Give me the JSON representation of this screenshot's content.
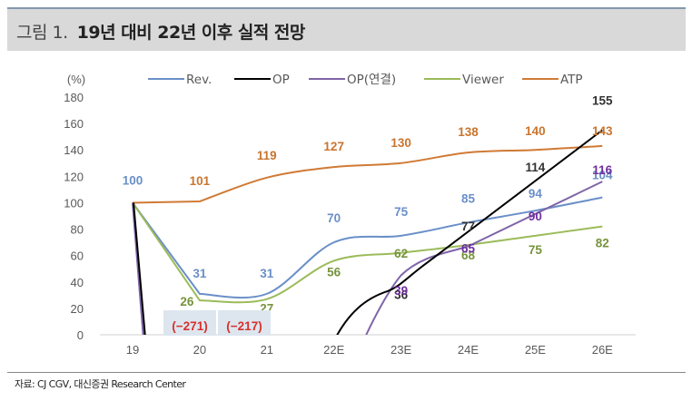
{
  "header": {
    "prefix": "그림 1.",
    "title": "19년 대비 22년 이후 실적 전망"
  },
  "footer": {
    "source": "자료: CJ CGV, 대신증권 Research Center"
  },
  "chart_data": {
    "type": "line",
    "title": "19년 대비 22년 이후 실적 전망",
    "ylabel": "(%)",
    "xlabel": "",
    "ylim": [
      0,
      180
    ],
    "yticks": [
      0,
      20,
      40,
      60,
      80,
      100,
      120,
      140,
      160,
      180
    ],
    "categories": [
      "19",
      "20",
      "21",
      "22E",
      "23E",
      "24E",
      "25E",
      "26E"
    ],
    "grid": false,
    "legend_position": "top",
    "series": [
      {
        "name": "Rev.",
        "color": "#6a8fc8",
        "values": [
          100,
          31,
          31,
          70,
          75,
          85,
          94,
          104
        ],
        "labels": [
          "100",
          "31",
          "31",
          "70",
          "75",
          "85",
          "94",
          "104"
        ]
      },
      {
        "name": "OP",
        "color": "#000000",
        "values": [
          100,
          -271,
          -217,
          null,
          36,
          77,
          114,
          155
        ],
        "labels": [
          "",
          "(-271)",
          "(-217)",
          "",
          "36",
          "77",
          "114",
          "155"
        ]
      },
      {
        "name": "OP(연결)",
        "color": "#7f65a8",
        "values": [
          100,
          null,
          null,
          null,
          39,
          65,
          90,
          116
        ],
        "labels": [
          "",
          "",
          "",
          "",
          "39",
          "65",
          "90",
          "116"
        ]
      },
      {
        "name": "Viewer",
        "color": "#9bbb59",
        "values": [
          100,
          26,
          27,
          56,
          62,
          68,
          75,
          82
        ],
        "labels": [
          "",
          "26",
          "27",
          "56",
          "62",
          "68",
          "75",
          "82"
        ]
      },
      {
        "name": "ATP",
        "color": "#d07a35",
        "values": [
          100,
          101,
          119,
          127,
          130,
          138,
          140,
          143
        ],
        "labels": [
          "",
          "101",
          "119",
          "127",
          "130",
          "138",
          "140",
          "143"
        ]
      }
    ],
    "label_colors": {
      "Rev.": "#6a8fc8",
      "OP": "#333333",
      "OP(연결)": "#7030a0",
      "Viewer": "#77933c",
      "ATP": "#c9752f",
      "negative": "#d9302c"
    },
    "negative_label_bg": "#dde6ef"
  }
}
